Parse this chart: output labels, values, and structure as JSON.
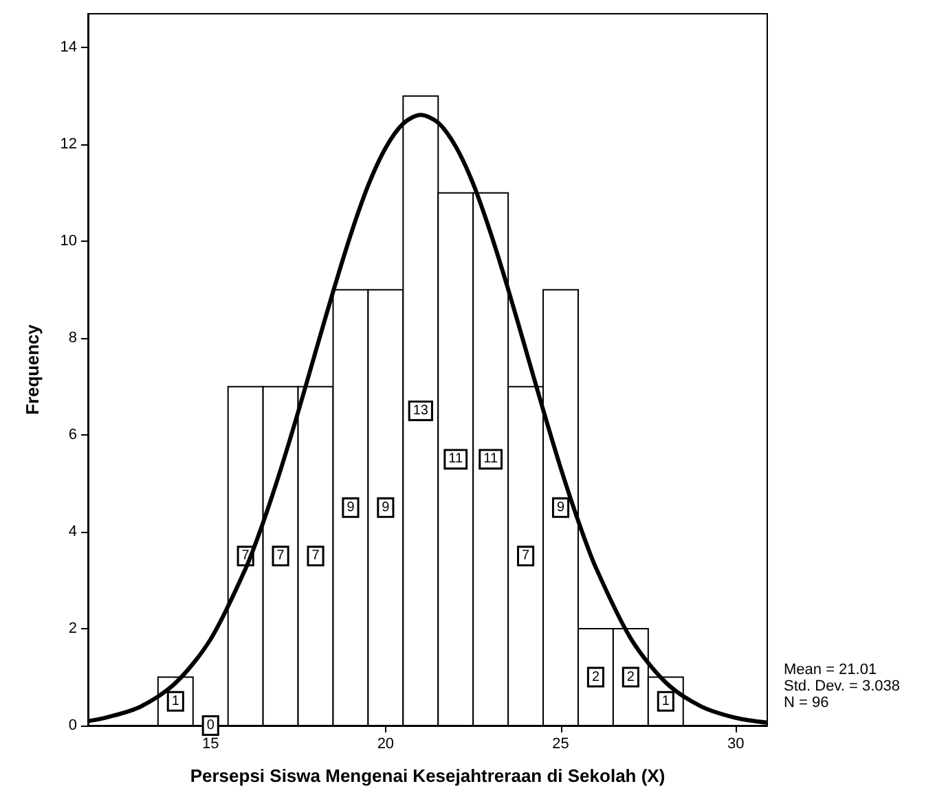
{
  "chart_data": {
    "type": "histogram",
    "xlabel": "Persepsi Siswa Mengenai Kesejahtreraan di Sekolah (X)",
    "ylabel": "Frequency",
    "bins": [
      13.5,
      14.5,
      15.5,
      16.5,
      17.5,
      18.5,
      19.5,
      20.5,
      21.5,
      22.5,
      23.5,
      24.5,
      25.5,
      26.5,
      27.5,
      28.5
    ],
    "values": [
      1,
      0,
      7,
      7,
      7,
      9,
      9,
      13,
      11,
      11,
      7,
      9,
      2,
      2,
      1
    ],
    "color": "#ffffff",
    "value_labels": [
      "1",
      "0",
      "7",
      "7",
      "7",
      "9",
      "9",
      "13",
      "11",
      "11",
      "7",
      "9",
      "2",
      "2",
      "1"
    ],
    "series": [
      {
        "type": "line",
        "color": "#000000",
        "marker": "none",
        "x": [
          11.5,
          12,
          13,
          14,
          15,
          16,
          16.5,
          17,
          17.5,
          18,
          18.5,
          19,
          19.5,
          20,
          20.5,
          21,
          21.5,
          22,
          22.5,
          23,
          23.5,
          24,
          24.5,
          25,
          25.5,
          26,
          27,
          28,
          29,
          30,
          30.9
        ],
        "values": [
          0.09,
          0.16,
          0.39,
          0.88,
          1.78,
          3.24,
          4.19,
          5.28,
          6.47,
          7.72,
          8.96,
          10.13,
          11.15,
          11.93,
          12.43,
          12.61,
          12.45,
          11.96,
          11.19,
          10.17,
          9.01,
          7.77,
          6.52,
          5.32,
          4.23,
          3.27,
          1.8,
          0.89,
          0.4,
          0.16,
          0.06
        ]
      }
    ],
    "xlim": [
      11.5,
      30.9
    ],
    "xticks": [
      15,
      20,
      25,
      30
    ],
    "ylim": [
      0,
      14.7
    ],
    "yticks": [
      0,
      2,
      4,
      6,
      8,
      10,
      12,
      14
    ],
    "annotations": [
      "Mean = 21.01",
      "Std. Dev. = 3.038",
      "N = 96"
    ]
  }
}
